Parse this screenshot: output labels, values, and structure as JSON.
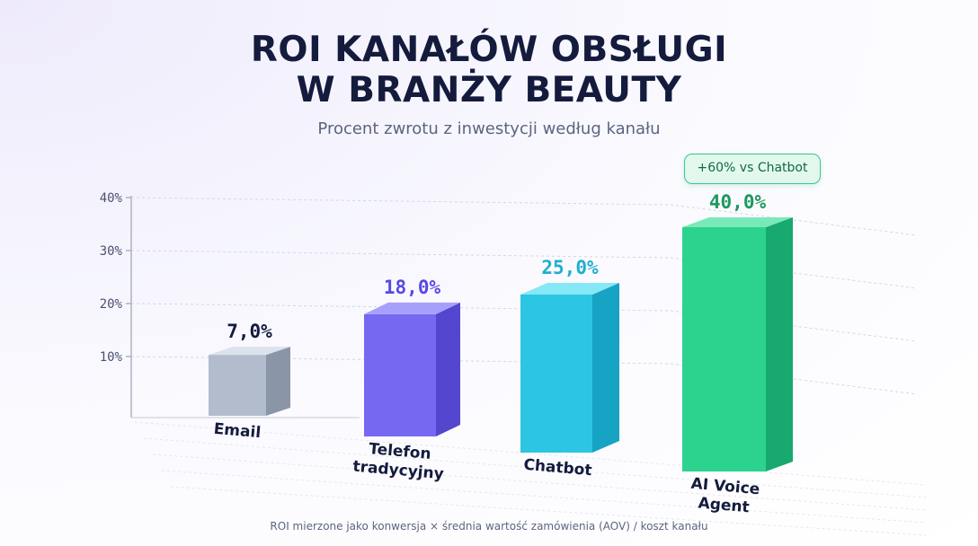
{
  "title_line1": "ROI KANAŁÓW OBSŁUGI",
  "title_line2": "W BRANŻY BEAUTY",
  "subtitle": "Procent zwrotu z inwestycji według kanału",
  "footnote": "ROI mierzone jako konwersja × średnia wartość zamówienia (AOV) / koszt kanału",
  "badge": "+60% vs Chatbot",
  "chart_data": {
    "type": "bar",
    "categories": [
      [
        "Email"
      ],
      [
        "Telefon",
        "tradycyjny"
      ],
      [
        "Chatbot"
      ],
      [
        "AI Voice",
        "Agent"
      ]
    ],
    "values": [
      7.0,
      18.0,
      25.0,
      40.0
    ],
    "value_labels": [
      "7,0%",
      "18,0%",
      "25,0%",
      "40,0%"
    ],
    "y_ticks": [
      10,
      20,
      30,
      40
    ],
    "y_tick_labels": [
      "10%",
      "20%",
      "30%",
      "40%"
    ],
    "ylim": [
      0,
      40
    ],
    "grid": true,
    "colors": {
      "front": [
        "#b2bccc",
        "#7569f2",
        "#2cc6e2",
        "#2bd38e"
      ],
      "top": [
        "#dde3ec",
        "#a7a0fb",
        "#86e8f6",
        "#7ae9b9"
      ],
      "side": [
        "#8b95a8",
        "#5446cf",
        "#17a3c4",
        "#17a96d"
      ],
      "label": [
        "#141b3d",
        "#5649e6",
        "#1fafce",
        "#1e9960"
      ]
    }
  }
}
